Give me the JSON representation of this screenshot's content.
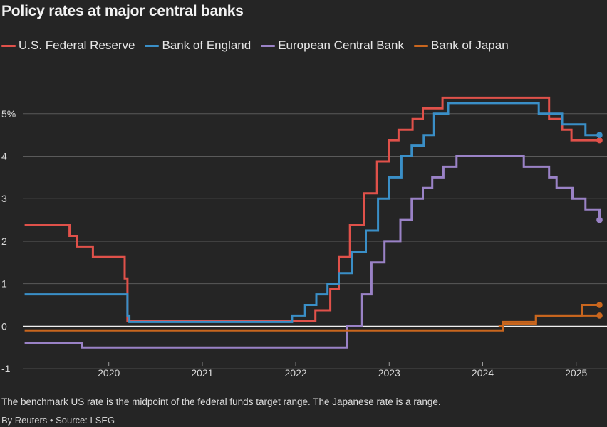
{
  "title": "Policy rates at major central banks",
  "legend": [
    {
      "name": "U.S. Federal Reserve",
      "color": "#e0514a"
    },
    {
      "name": "Bank of England",
      "color": "#3a8fc7"
    },
    {
      "name": "European Central Bank",
      "color": "#9a82c6"
    },
    {
      "name": "Bank of Japan",
      "color": "#c9661e"
    }
  ],
  "note": "The benchmark US rate is the midpoint of the federal funds target range. The Japanese rate is a range.",
  "source": "By Reuters • Source: LSEG",
  "chart_data": {
    "type": "line",
    "step": true,
    "title": "Policy rates at major central banks",
    "xlabel": "",
    "ylabel": "",
    "xlim": [
      2019.08,
      2025.33
    ],
    "ylim": [
      -1.3,
      5.7
    ],
    "y_ticks": [
      5,
      4,
      3,
      2,
      1,
      0,
      -1
    ],
    "y_tick_labels": [
      "5%",
      "4",
      "3",
      "2",
      "1",
      "0",
      "-1"
    ],
    "x_ticks": [
      2020,
      2021,
      2022,
      2023,
      2024,
      2025
    ],
    "x_tick_labels": [
      "2020",
      "2021",
      "2022",
      "2023",
      "2024",
      "2025"
    ],
    "grid": true,
    "legend_position": "top",
    "series": [
      {
        "name": "U.S. Federal Reserve",
        "color": "#e0514a",
        "x": [
          2019.1,
          2019.58,
          2019.66,
          2019.83,
          2020.17,
          2020.2,
          2022.21,
          2022.37,
          2022.46,
          2022.58,
          2022.73,
          2022.87,
          2023.0,
          2023.1,
          2023.25,
          2023.36,
          2023.57,
          2024.71,
          2024.85,
          2024.95,
          2025.25
        ],
        "y": [
          2.375,
          2.125,
          1.875,
          1.625,
          1.125,
          0.125,
          0.375,
          0.875,
          1.625,
          2.375,
          3.125,
          3.875,
          4.375,
          4.625,
          4.875,
          5.125,
          5.375,
          4.875,
          4.625,
          4.375,
          4.375
        ]
      },
      {
        "name": "Bank of England",
        "color": "#3a8fc7",
        "x": [
          2019.1,
          2020.2,
          2020.22,
          2021.96,
          2022.1,
          2022.22,
          2022.34,
          2022.46,
          2022.6,
          2022.75,
          2022.88,
          2023.0,
          2023.13,
          2023.24,
          2023.37,
          2023.48,
          2023.63,
          2024.6,
          2024.85,
          2025.1,
          2025.25
        ],
        "y": [
          0.75,
          0.25,
          0.1,
          0.25,
          0.5,
          0.75,
          1.0,
          1.25,
          1.75,
          2.25,
          3.0,
          3.5,
          4.0,
          4.25,
          4.5,
          5.0,
          5.25,
          5.0,
          4.75,
          4.5,
          4.5
        ]
      },
      {
        "name": "European Central Bank",
        "color": "#9a82c6",
        "x": [
          2019.1,
          2019.71,
          2022.55,
          2022.71,
          2022.81,
          2022.95,
          2023.12,
          2023.24,
          2023.36,
          2023.46,
          2023.58,
          2023.72,
          2024.44,
          2024.71,
          2024.79,
          2024.96,
          2025.1,
          2025.25
        ],
        "y": [
          -0.4,
          -0.5,
          0.0,
          0.75,
          1.5,
          2.0,
          2.5,
          3.0,
          3.25,
          3.5,
          3.75,
          4.0,
          3.75,
          3.5,
          3.25,
          3.0,
          2.75,
          2.5
        ]
      },
      {
        "name": "Bank of Japan",
        "color": "#c9661e",
        "x": [
          2019.1,
          2024.22,
          2024.57,
          2025.06,
          2025.25
        ],
        "y": [
          -0.1,
          0.05,
          0.25,
          0.5,
          0.5
        ]
      },
      {
        "name": "",
        "color": "#c9661e",
        "x": [
          2024.17,
          2024.22,
          2024.57,
          2025.25
        ],
        "y": [
          0.0,
          0.1,
          0.25,
          0.25
        ]
      }
    ]
  }
}
